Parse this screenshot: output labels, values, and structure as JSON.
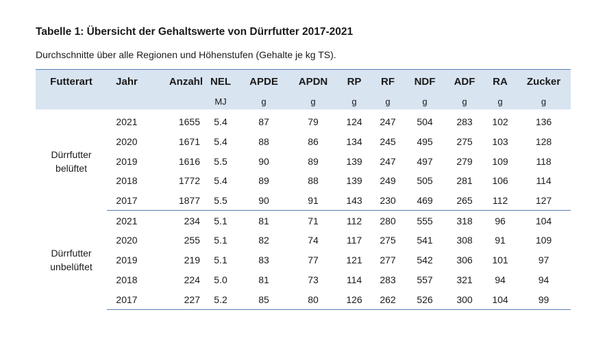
{
  "title": "Tabelle 1: Übersicht der Gehaltswerte von Dürrfutter 2017-2021",
  "subtitle": "Durchschnitte über alle Regionen und Höhenstufen (Gehalte je kg TS).",
  "columns": [
    "Futterart",
    "Jahr",
    "Anzahl",
    "NEL",
    "APDE",
    "APDN",
    "RP",
    "RF",
    "NDF",
    "ADF",
    "RA",
    "Zucker"
  ],
  "units": [
    "",
    "",
    "",
    "MJ",
    "g",
    "g",
    "g",
    "g",
    "g",
    "g",
    "g",
    "g"
  ],
  "groups": [
    {
      "name_line1": "Dürrfutter",
      "name_line2": "belüftet",
      "rows": [
        [
          "2021",
          "1655",
          "5.4",
          "87",
          "79",
          "124",
          "247",
          "504",
          "283",
          "102",
          "136"
        ],
        [
          "2020",
          "1671",
          "5.4",
          "88",
          "86",
          "134",
          "245",
          "495",
          "275",
          "103",
          "128"
        ],
        [
          "2019",
          "1616",
          "5.5",
          "90",
          "89",
          "139",
          "247",
          "497",
          "279",
          "109",
          "118"
        ],
        [
          "2018",
          "1772",
          "5.4",
          "89",
          "88",
          "139",
          "249",
          "505",
          "281",
          "106",
          "114"
        ],
        [
          "2017",
          "1877",
          "5.5",
          "90",
          "91",
          "143",
          "230",
          "469",
          "265",
          "112",
          "127"
        ]
      ]
    },
    {
      "name_line1": "Dürrfutter",
      "name_line2": "unbelüftet",
      "rows": [
        [
          "2021",
          "234",
          "5.1",
          "81",
          "71",
          "112",
          "280",
          "555",
          "318",
          "96",
          "104"
        ],
        [
          "2020",
          "255",
          "5.1",
          "82",
          "74",
          "117",
          "275",
          "541",
          "308",
          "91",
          "109"
        ],
        [
          "2019",
          "219",
          "5.1",
          "83",
          "77",
          "121",
          "277",
          "542",
          "306",
          "101",
          "97"
        ],
        [
          "2018",
          "224",
          "5.0",
          "81",
          "73",
          "114",
          "283",
          "557",
          "321",
          "94",
          "94"
        ],
        [
          "2017",
          "227",
          "5.2",
          "85",
          "80",
          "126",
          "262",
          "526",
          "300",
          "104",
          "99"
        ]
      ]
    }
  ]
}
